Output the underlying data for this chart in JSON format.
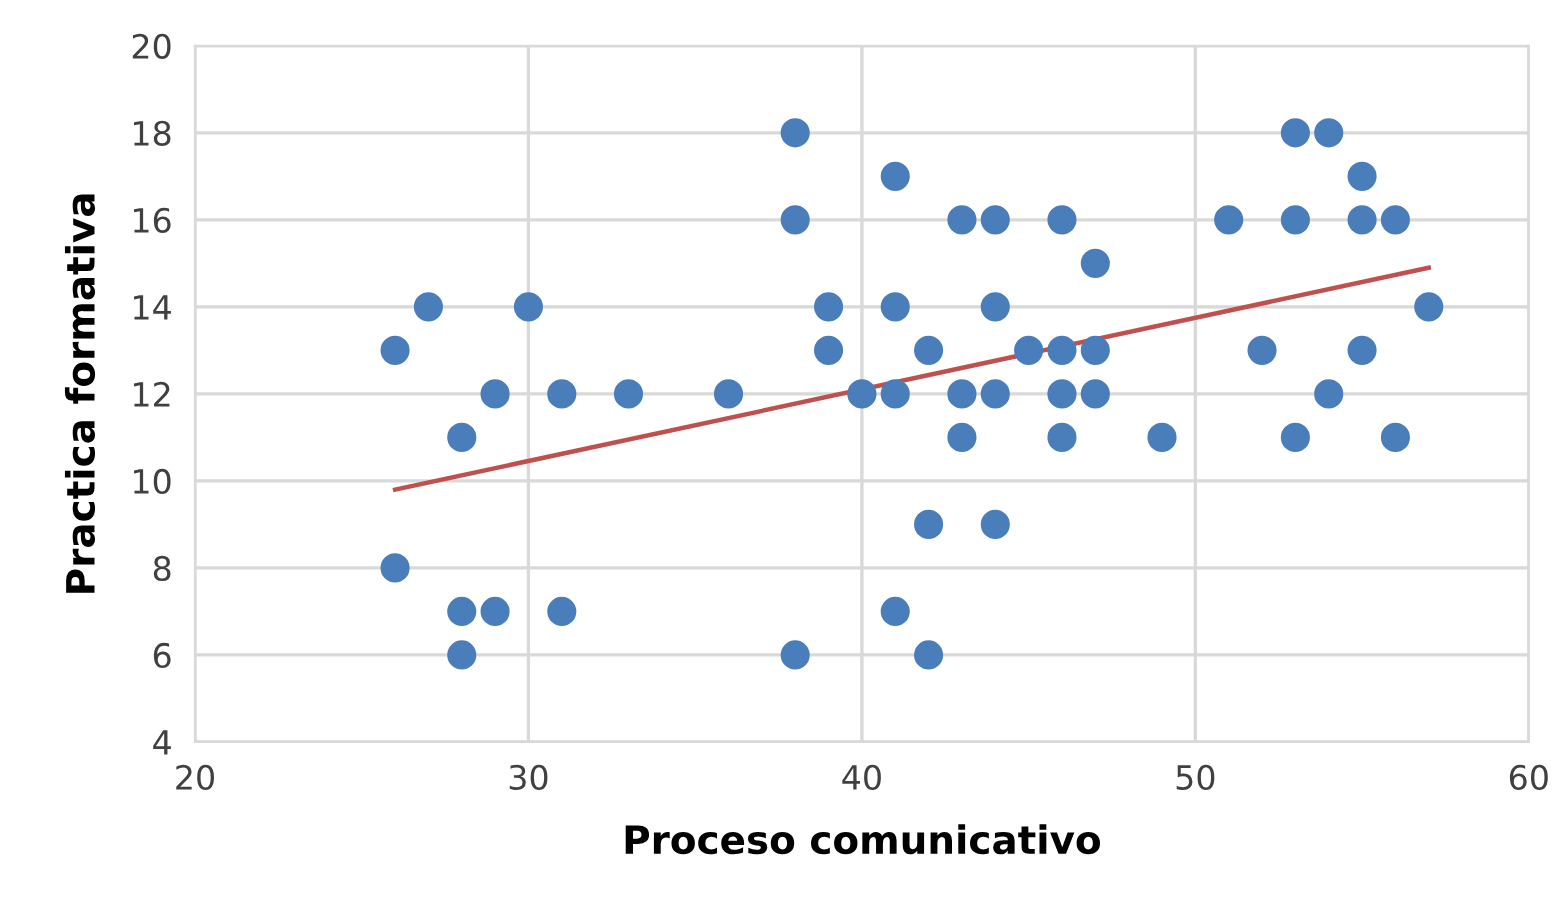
{
  "chart_data": {
    "type": "scatter",
    "xlabel": "Proceso comunicativo",
    "ylabel": "Practica formativa",
    "xlim": [
      20,
      60
    ],
    "ylim": [
      4,
      20
    ],
    "xticks": [
      20,
      30,
      40,
      50,
      60
    ],
    "yticks": [
      4,
      6,
      8,
      10,
      12,
      14,
      16,
      18,
      20
    ],
    "grid": true,
    "series": [
      {
        "marker": "circle",
        "color": "#4a7ebb",
        "x": [
          26,
          26,
          27,
          28,
          28,
          28,
          29,
          29,
          30,
          31,
          31,
          33,
          36,
          38,
          38,
          38,
          39,
          39,
          40,
          41,
          41,
          41,
          41,
          42,
          42,
          42,
          43,
          43,
          43,
          44,
          44,
          44,
          44,
          45,
          46,
          46,
          46,
          46,
          47,
          47,
          47,
          49,
          51,
          52,
          53,
          53,
          53,
          54,
          54,
          55,
          55,
          55,
          56,
          56,
          57
        ],
        "values": [
          13,
          8,
          14,
          11,
          7,
          6,
          12,
          7,
          14,
          12,
          7,
          12,
          12,
          18,
          16,
          6,
          14,
          13,
          12,
          17,
          14,
          12,
          7,
          13,
          9,
          6,
          16,
          12,
          11,
          16,
          14,
          12,
          9,
          13,
          16,
          13,
          12,
          11,
          15,
          13,
          12,
          11,
          16,
          13,
          18,
          16,
          11,
          18,
          12,
          17,
          16,
          13,
          16,
          11,
          14
        ]
      },
      {
        "type": "line",
        "marker": "none",
        "color": "#c0504d",
        "x": [
          26,
          57
        ],
        "values": [
          9.8,
          14.9
        ]
      }
    ]
  }
}
